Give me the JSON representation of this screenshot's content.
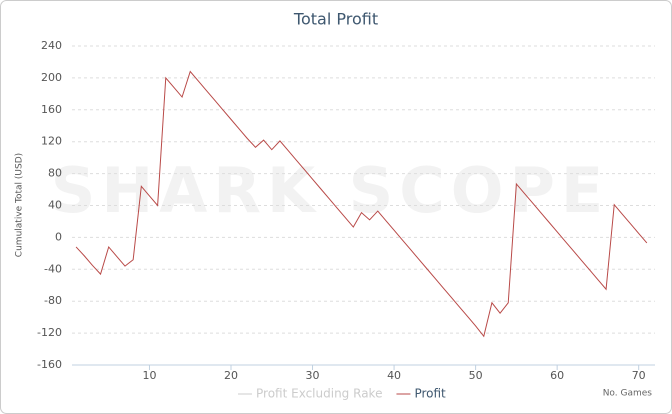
{
  "chart_data": {
    "type": "line",
    "title": "Total Profit",
    "watermark": "SHARK SCOPE",
    "x_label": "No. Games",
    "y_label": "Cumulative Total (USD)",
    "x": [
      1,
      2,
      3,
      4,
      5,
      6,
      7,
      8,
      9,
      10,
      11,
      12,
      13,
      14,
      15,
      16,
      17,
      18,
      19,
      20,
      21,
      22,
      23,
      24,
      25,
      26,
      27,
      28,
      29,
      30,
      31,
      32,
      33,
      34,
      35,
      36,
      37,
      38,
      39,
      40,
      41,
      42,
      43,
      44,
      45,
      46,
      47,
      48,
      49,
      50,
      51,
      52,
      53,
      54,
      55,
      56,
      57,
      58,
      59,
      60,
      61,
      62,
      63,
      64,
      65,
      66,
      67,
      68,
      69,
      70,
      71
    ],
    "series": [
      {
        "name": "Profit Excluding Rake",
        "color": "#cccccc",
        "hidden": true
      },
      {
        "name": "Profit",
        "color": "#b94a48",
        "values": [
          -12,
          -23,
          -35,
          -46,
          -12,
          -24,
          -36,
          -28,
          64,
          52,
          40,
          200,
          188,
          176,
          208,
          196,
          184,
          172,
          160,
          148,
          136,
          124,
          113,
          122,
          110,
          121,
          109,
          97,
          85,
          73,
          61,
          49,
          37,
          25,
          13,
          31,
          22,
          33,
          21,
          9,
          -3,
          -15,
          -27,
          -39,
          -51,
          -63,
          -75,
          -87,
          -99,
          -111,
          -124,
          -82,
          -95,
          -82,
          67,
          55,
          43,
          31,
          19,
          7,
          -5,
          -17,
          -29,
          -41,
          -53,
          -65,
          41,
          29,
          17,
          5,
          -7
        ]
      }
    ],
    "xlim": [
      0.5,
      72
    ],
    "xticks": [
      10,
      20,
      30,
      40,
      50,
      60,
      70
    ],
    "ylim": [
      -160,
      240
    ],
    "yticks": [
      -160,
      -120,
      -80,
      -40,
      0,
      40,
      80,
      120,
      160,
      200,
      240
    ],
    "grid": true
  }
}
